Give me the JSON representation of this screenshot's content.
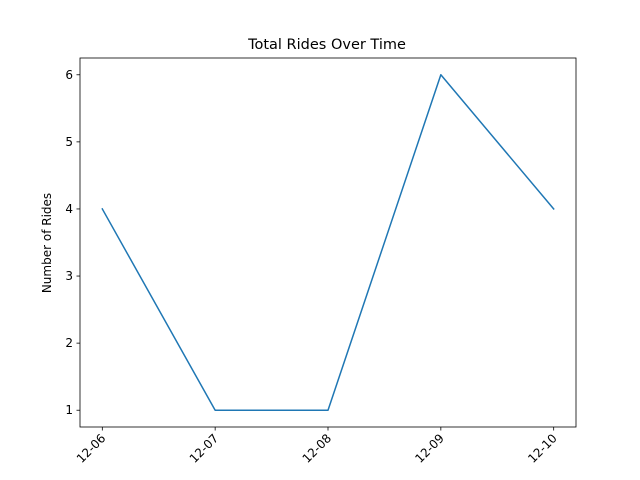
{
  "chart_data": {
    "type": "line",
    "title": "Total Rides Over Time",
    "xlabel": "",
    "ylabel": "Number of Rides",
    "x": [
      "12-06",
      "12-07",
      "12-08",
      "12-09",
      "12-10"
    ],
    "series": [
      {
        "values": [
          4,
          1,
          1,
          6,
          4
        ],
        "color": "#1f77b4"
      }
    ],
    "yticks": [
      1,
      2,
      3,
      4,
      5,
      6
    ],
    "ylim": [
      0.75,
      6.25
    ],
    "xtick_rotation": "45 degrees",
    "grid": false,
    "legend": "none"
  }
}
